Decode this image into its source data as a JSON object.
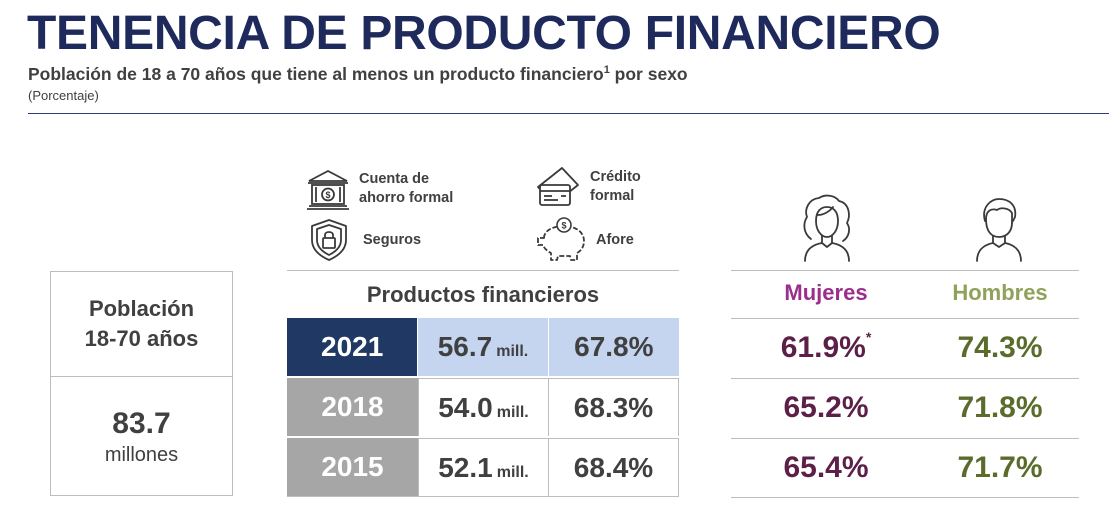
{
  "header": {
    "title": "TENENCIA DE PRODUCTO FINANCIERO",
    "subtitle_main": "Población de 18 a 70 años que tiene al menos un producto financiero",
    "subtitle_sup": "1",
    "subtitle_end": " por sexo",
    "unit": "(Porcentaje)"
  },
  "legend": {
    "items": [
      {
        "icon": "bank-icon",
        "label_line1": "Cuenta de",
        "label_line2": "ahorro formal"
      },
      {
        "icon": "credit-card-icon",
        "label_line1": "Crédito",
        "label_line2": "formal"
      },
      {
        "icon": "shield-lock-icon",
        "label": "Seguros"
      },
      {
        "icon": "piggy-bank-icon",
        "label": "Afore"
      }
    ]
  },
  "population": {
    "label_line1": "Población",
    "label_line2": "18-70 años",
    "value": "83.7",
    "units": "millones"
  },
  "products": {
    "header": "Productos financieros",
    "mill_unit": "mill.",
    "rows": [
      {
        "year": "2021",
        "people": "56.7",
        "percent": "67.8%"
      },
      {
        "year": "2018",
        "people": "54.0",
        "percent": "68.3%"
      },
      {
        "year": "2015",
        "people": "52.1",
        "percent": "68.4%"
      }
    ]
  },
  "by_sex": {
    "women_label": "Mujeres",
    "men_label": "Hombres",
    "women_icon": "woman-icon",
    "men_icon": "man-icon",
    "rows": [
      {
        "women": "61.9%",
        "women_mark": "*",
        "men": "74.3%"
      },
      {
        "women": "65.2%",
        "women_mark": "",
        "men": "71.8%"
      },
      {
        "women": "65.4%",
        "women_mark": "",
        "men": "71.7%"
      }
    ]
  },
  "colors": {
    "title": "#1f2a5c",
    "highlight_year": "#1f3864",
    "highlight_cells": "#c5d5ef",
    "gray_year": "#a6a6a6",
    "women": "#5b1f48",
    "women_header": "#9b2f8b",
    "men": "#5a6b2c",
    "men_header": "#8fa15a"
  }
}
